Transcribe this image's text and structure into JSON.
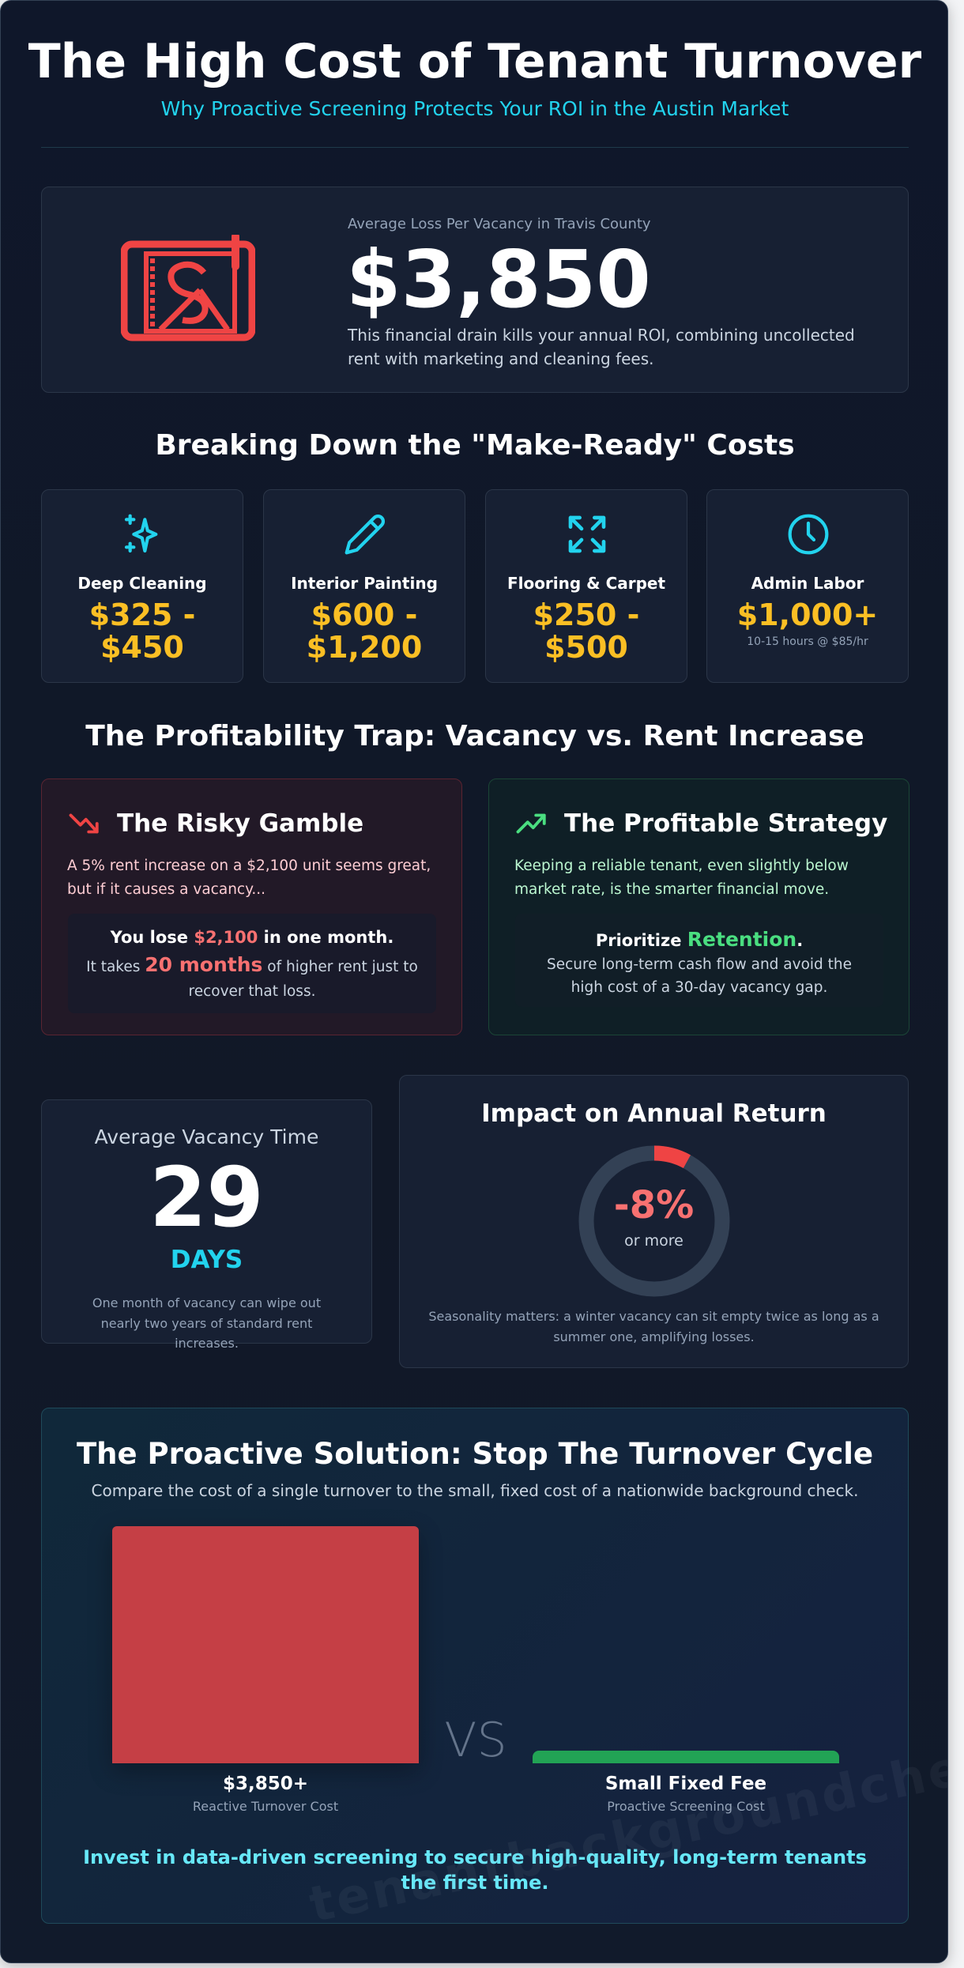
{
  "header": {
    "title": "The High Cost of Tenant Turnover",
    "subtitle": "Why Proactive Screening Protects Your ROI in the Austin Market"
  },
  "hero": {
    "icon": "money-off-icon",
    "label": "Average Loss Per Vacancy in Travis County",
    "value": "$3,850",
    "description": "This financial drain kills your annual ROI, combining uncollected rent with marketing and cleaning fees."
  },
  "breakdown": {
    "heading": "Breaking Down the \"Make-Ready\" Costs",
    "items": [
      {
        "icon": "sparkles-icon",
        "name": "Deep Cleaning",
        "value_line1": "$325 -",
        "value_line2": "$450"
      },
      {
        "icon": "pencil-icon",
        "name": "Interior Painting",
        "value_line1": "$600 -",
        "value_line2": "$1,200"
      },
      {
        "icon": "expand-arrows-icon",
        "name": "Flooring & Carpet",
        "value_line1": "$250 -",
        "value_line2": "$500"
      },
      {
        "icon": "clock-icon",
        "name": "Admin Labor",
        "value_line1": "$1,000+",
        "note": "10-15 hours @ $85/hr"
      }
    ]
  },
  "trap": {
    "heading": "The Profitability Trap: Vacancy vs. Rent Increase",
    "risky": {
      "icon": "trending-down-icon",
      "title": "The Risky Gamble",
      "body": "A 5% rent increase on a $2,100 unit seems great, but if it causes a vacancy...",
      "lose_pre": "You lose ",
      "lose_amount": "$2,100",
      "lose_post": " in one month.",
      "takes_pre": "It takes ",
      "takes_amount": "20 months",
      "takes_post": " of higher rent just to recover that loss."
    },
    "profitable": {
      "icon": "trending-up-icon",
      "title": "The Profitable Strategy",
      "body": "Keeping a reliable tenant, even slightly below market rate, is the smarter financial move.",
      "prioritize_pre": "Prioritize ",
      "prioritize_word": "Retention",
      "prioritize_post": ".",
      "detail": "Secure long-term cash flow and avoid the high cost of a 30-day vacancy gap."
    }
  },
  "vacancy": {
    "label": "Average Vacancy Time",
    "value": "29",
    "unit": "DAYS",
    "note": "One month of vacancy can wipe out nearly two years of standard rent increases."
  },
  "impact": {
    "title": "Impact on Annual Return",
    "value": "-8%",
    "value_sub": "or more",
    "percent": 8,
    "note": "Seasonality matters: a winter vacancy can sit empty twice as long as a summer one, amplifying losses."
  },
  "solution": {
    "title": "The Proactive Solution: Stop The Turnover Cycle",
    "subtitle": "Compare the cost of a single turnover to the small, fixed cost of a nationwide background check.",
    "vs": "VS",
    "left": {
      "value": "$3,850+",
      "label": "Reactive Turnover Cost"
    },
    "right": {
      "value": "Small Fixed Fee",
      "label": "Proactive Screening Cost"
    },
    "cta": "Invest in data-driven screening to secure high-quality, long-term tenants the first time."
  },
  "watermark": "tenantbackgroundchecks.us",
  "colors": {
    "accent": "#22d3ee",
    "danger": "#ef4444",
    "success": "#4ade80",
    "gold": "#fbbf24"
  }
}
